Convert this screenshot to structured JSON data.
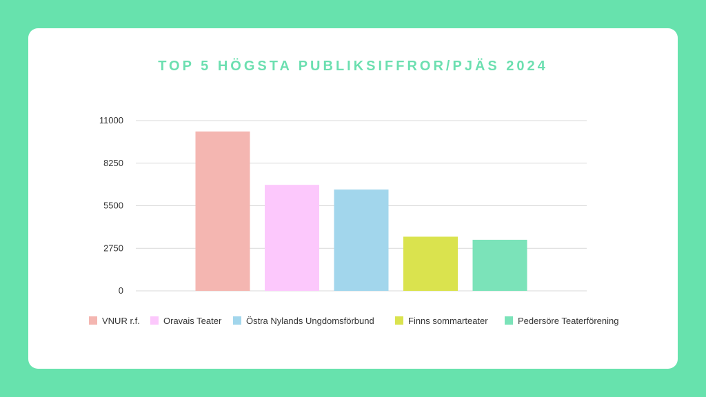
{
  "chart_data": {
    "type": "bar",
    "title": "TOP 5 HÖGSTA PUBLIKSIFFROR/PJÄS 2024",
    "categories": [
      "VNUR r.f.",
      "Oravais Teater",
      "Östra Nylands Ungdomsförbund",
      "Finns sommarteater",
      "Pedersöre Teaterförening"
    ],
    "values": [
      10300,
      6850,
      6550,
      3500,
      3300
    ],
    "colors": [
      "#f4b6b1",
      "#fcc8fc",
      "#a2d6ec",
      "#dae34e",
      "#7be3b9"
    ],
    "y_ticks": [
      0,
      2750,
      5500,
      8250,
      11000
    ],
    "y_tick_labels": [
      "0",
      "2750",
      "5500",
      "8250",
      "11000"
    ],
    "ylim": [
      0,
      11000
    ],
    "grid": true,
    "legend_position": "bottom",
    "xlabel": "",
    "ylabel": ""
  },
  "colors": {
    "background": "#67e2ad",
    "card": "#ffffff",
    "title": "#6cdfb0",
    "grid": "#d9d9d9"
  }
}
